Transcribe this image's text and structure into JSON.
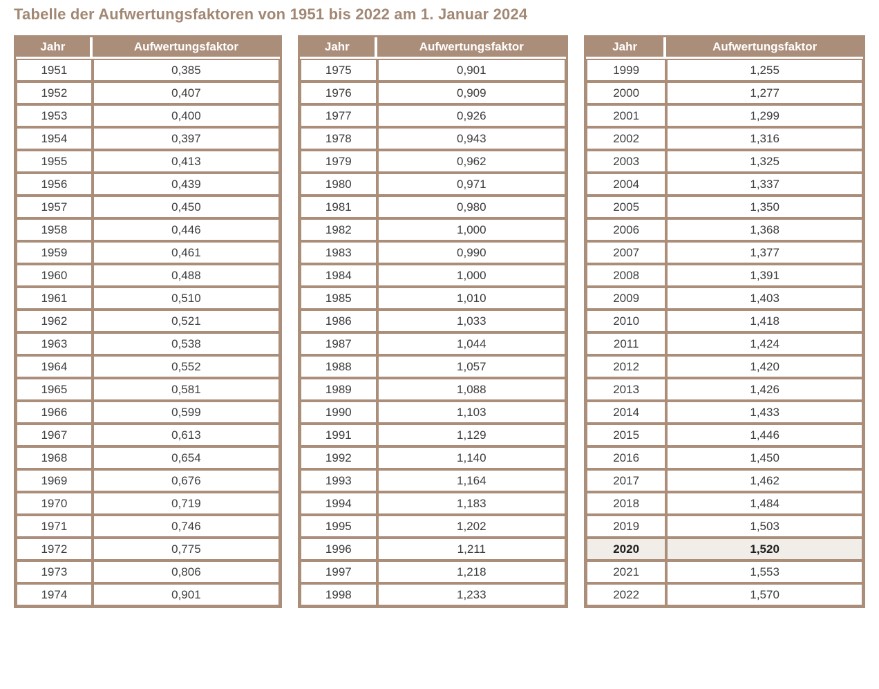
{
  "title": "Tabelle der Aufwertungsfaktoren von 1951 bis 2022 am 1. Januar 2024",
  "columns": {
    "year": "Jahr",
    "factor": "Aufwertungsfaktor"
  },
  "highlighted_year": "2020",
  "colors": {
    "brown": "#ab8e7a",
    "title": "#a28773",
    "text": "#3c3c3c",
    "highlight": "#f1ede9"
  },
  "tables": [
    {
      "rows": [
        {
          "year": "1951",
          "factor": "0,385"
        },
        {
          "year": "1952",
          "factor": "0,407"
        },
        {
          "year": "1953",
          "factor": "0,400"
        },
        {
          "year": "1954",
          "factor": "0,397"
        },
        {
          "year": "1955",
          "factor": "0,413"
        },
        {
          "year": "1956",
          "factor": "0,439"
        },
        {
          "year": "1957",
          "factor": "0,450"
        },
        {
          "year": "1958",
          "factor": "0,446"
        },
        {
          "year": "1959",
          "factor": "0,461"
        },
        {
          "year": "1960",
          "factor": "0,488"
        },
        {
          "year": "1961",
          "factor": "0,510"
        },
        {
          "year": "1962",
          "factor": "0,521"
        },
        {
          "year": "1963",
          "factor": "0,538"
        },
        {
          "year": "1964",
          "factor": "0,552"
        },
        {
          "year": "1965",
          "factor": "0,581"
        },
        {
          "year": "1966",
          "factor": "0,599"
        },
        {
          "year": "1967",
          "factor": "0,613"
        },
        {
          "year": "1968",
          "factor": "0,654"
        },
        {
          "year": "1969",
          "factor": "0,676"
        },
        {
          "year": "1970",
          "factor": "0,719"
        },
        {
          "year": "1971",
          "factor": "0,746"
        },
        {
          "year": "1972",
          "factor": "0,775"
        },
        {
          "year": "1973",
          "factor": "0,806"
        },
        {
          "year": "1974",
          "factor": "0,901"
        }
      ]
    },
    {
      "rows": [
        {
          "year": "1975",
          "factor": "0,901"
        },
        {
          "year": "1976",
          "factor": "0,909"
        },
        {
          "year": "1977",
          "factor": "0,926"
        },
        {
          "year": "1978",
          "factor": "0,943"
        },
        {
          "year": "1979",
          "factor": "0,962"
        },
        {
          "year": "1980",
          "factor": "0,971"
        },
        {
          "year": "1981",
          "factor": "0,980"
        },
        {
          "year": "1982",
          "factor": "1,000"
        },
        {
          "year": "1983",
          "factor": "0,990"
        },
        {
          "year": "1984",
          "factor": "1,000"
        },
        {
          "year": "1985",
          "factor": "1,010"
        },
        {
          "year": "1986",
          "factor": "1,033"
        },
        {
          "year": "1987",
          "factor": "1,044"
        },
        {
          "year": "1988",
          "factor": "1,057"
        },
        {
          "year": "1989",
          "factor": "1,088"
        },
        {
          "year": "1990",
          "factor": "1,103"
        },
        {
          "year": "1991",
          "factor": "1,129"
        },
        {
          "year": "1992",
          "factor": "1,140"
        },
        {
          "year": "1993",
          "factor": "1,164"
        },
        {
          "year": "1994",
          "factor": "1,183"
        },
        {
          "year": "1995",
          "factor": "1,202"
        },
        {
          "year": "1996",
          "factor": "1,211"
        },
        {
          "year": "1997",
          "factor": "1,218"
        },
        {
          "year": "1998",
          "factor": "1,233"
        }
      ]
    },
    {
      "rows": [
        {
          "year": "1999",
          "factor": "1,255"
        },
        {
          "year": "2000",
          "factor": "1,277"
        },
        {
          "year": "2001",
          "factor": "1,299"
        },
        {
          "year": "2002",
          "factor": "1,316"
        },
        {
          "year": "2003",
          "factor": "1,325"
        },
        {
          "year": "2004",
          "factor": "1,337"
        },
        {
          "year": "2005",
          "factor": "1,350"
        },
        {
          "year": "2006",
          "factor": "1,368"
        },
        {
          "year": "2007",
          "factor": "1,377"
        },
        {
          "year": "2008",
          "factor": "1,391"
        },
        {
          "year": "2009",
          "factor": "1,403"
        },
        {
          "year": "2010",
          "factor": "1,418"
        },
        {
          "year": "2011",
          "factor": "1,424"
        },
        {
          "year": "2012",
          "factor": "1,420"
        },
        {
          "year": "2013",
          "factor": "1,426"
        },
        {
          "year": "2014",
          "factor": "1,433"
        },
        {
          "year": "2015",
          "factor": "1,446"
        },
        {
          "year": "2016",
          "factor": "1,450"
        },
        {
          "year": "2017",
          "factor": "1,462"
        },
        {
          "year": "2018",
          "factor": "1,484"
        },
        {
          "year": "2019",
          "factor": "1,503"
        },
        {
          "year": "2020",
          "factor": "1,520"
        },
        {
          "year": "2021",
          "factor": "1,553"
        },
        {
          "year": "2022",
          "factor": "1,570"
        }
      ]
    }
  ]
}
